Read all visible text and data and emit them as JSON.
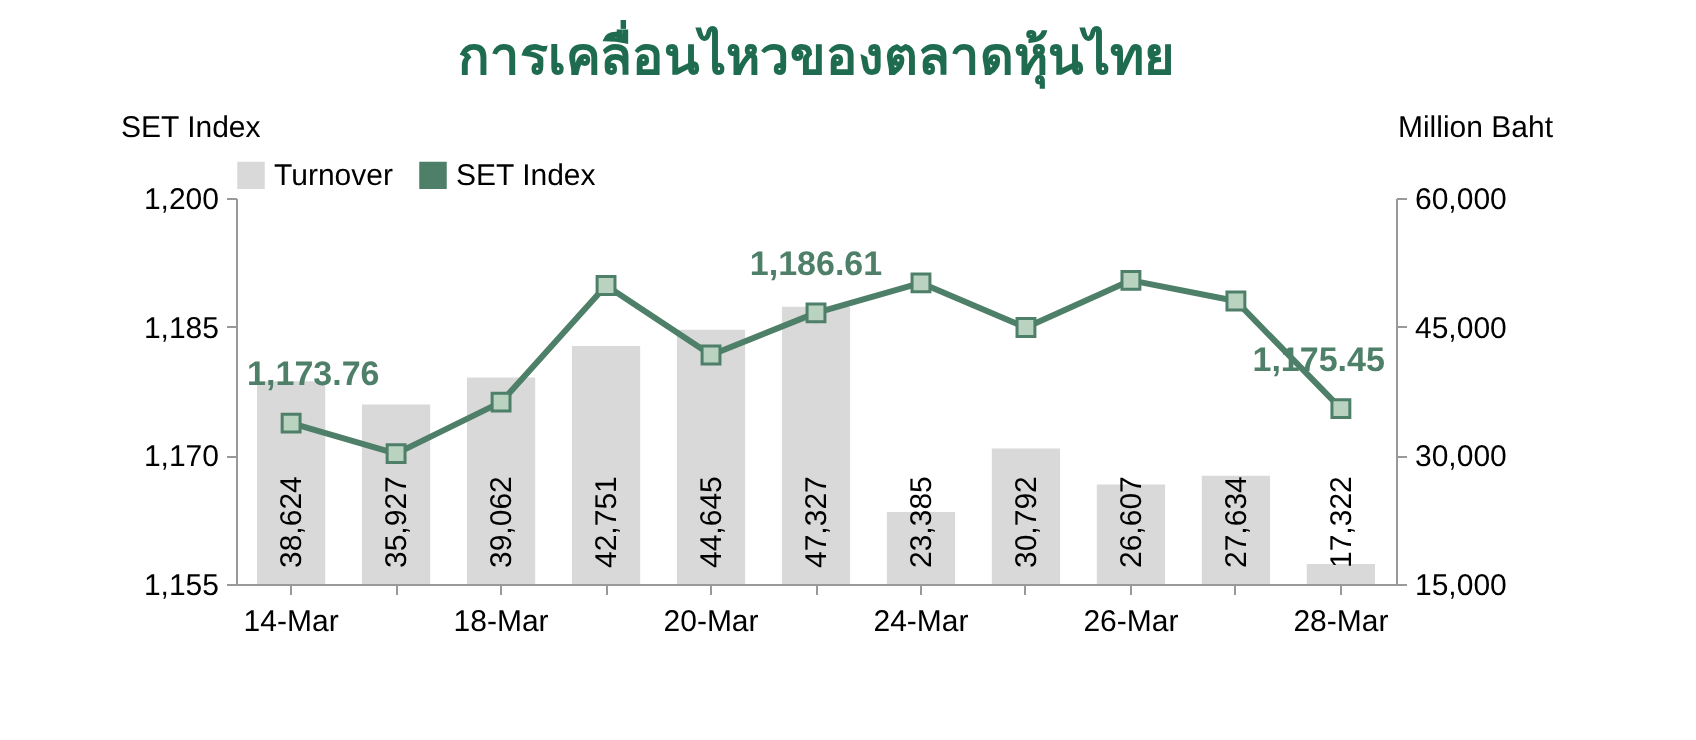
{
  "chart_data": {
    "type": "bar",
    "title": "การเคลื่อนไหวของตลาดหุ้นไทย",
    "categories": [
      "14-Mar",
      null,
      "18-Mar",
      null,
      "20-Mar",
      null,
      "24-Mar",
      null,
      "26-Mar",
      null,
      "28-Mar"
    ],
    "series": [
      {
        "name": "Turnover",
        "axis": "y2",
        "color": "#d9d9d9",
        "values": [
          38624,
          35927,
          39062,
          42751,
          44645,
          47327,
          23385,
          30792,
          26607,
          27634,
          17322
        ],
        "value_labels": [
          "38,624",
          "35,927",
          "39,062",
          "42,751",
          "44,645",
          "47,327",
          "23,385",
          "30,792",
          "26,607",
          "27,634",
          "17,322"
        ]
      },
      {
        "name": "SET Index",
        "type": "line",
        "axis": "y",
        "color": "#4e7f68",
        "marker": "square",
        "values": [
          1173.76,
          1170.2,
          1176.2,
          1189.8,
          1181.7,
          1186.61,
          1190.1,
          1184.9,
          1190.4,
          1188.0,
          1175.45
        ],
        "value_labels": [
          "1,173.76",
          null,
          null,
          null,
          null,
          "1,186.61",
          null,
          null,
          null,
          null,
          "1,175.45"
        ]
      }
    ],
    "ylabel": "SET Index",
    "y2label": "Million Baht",
    "ylim": [
      1155,
      1200
    ],
    "yticks": [
      {
        "value": 1155,
        "label": "1,155"
      },
      {
        "value": 1170,
        "label": "1,170"
      },
      {
        "value": 1185,
        "label": "1,185"
      },
      {
        "value": 1200,
        "label": "1,200"
      }
    ],
    "y2lim": [
      15000,
      60000
    ],
    "y2ticks": [
      {
        "value": 15000,
        "label": "15,000"
      },
      {
        "value": 30000,
        "label": "30,000"
      },
      {
        "value": 45000,
        "label": "45,000"
      },
      {
        "value": 60000,
        "label": "60,000"
      }
    ],
    "legend": "top",
    "grid": false
  }
}
